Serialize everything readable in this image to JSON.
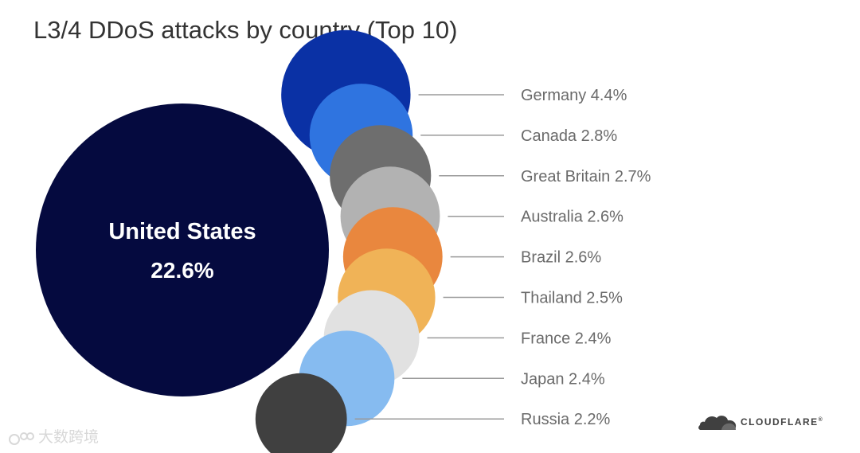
{
  "title": "L3/4 DDoS attacks by country (Top 10)",
  "chart_data": {
    "type": "bubble",
    "title": "L3/4 DDoS attacks by country (Top 10)",
    "unit": "%",
    "leader": {
      "category": "United States",
      "value": 22.6,
      "value_label": "22.6%",
      "color": "#050a3f"
    },
    "items": [
      {
        "category": "Germany",
        "value": 4.4,
        "label": "Germany 4.4%",
        "color": "#0a31a5"
      },
      {
        "category": "Canada",
        "value": 2.8,
        "label": "Canada 2.8%",
        "color": "#2f74e0"
      },
      {
        "category": "Great Britain",
        "value": 2.7,
        "label": "Great Britain 2.7%",
        "color": "#6e6e6e"
      },
      {
        "category": "Australia",
        "value": 2.6,
        "label": "Australia 2.6%",
        "color": "#b2b2b2"
      },
      {
        "category": "Brazil",
        "value": 2.6,
        "label": "Brazil 2.6%",
        "color": "#e9873e"
      },
      {
        "category": "Thailand",
        "value": 2.5,
        "label": "Thailand 2.5%",
        "color": "#f0b357"
      },
      {
        "category": "France",
        "value": 2.4,
        "label": "France 2.4%",
        "color": "#e1e1e1"
      },
      {
        "category": "Japan",
        "value": 2.4,
        "label": "Japan 2.4%",
        "color": "#86bbf0"
      },
      {
        "category": "Russia",
        "value": 2.2,
        "label": "Russia 2.2%",
        "color": "#404040"
      }
    ]
  },
  "watermark": {
    "text": "大数跨境"
  },
  "logo": {
    "text": "CLOUDFLARE",
    "mark": "®",
    "icon": "cloud-icon",
    "color": "#404040"
  }
}
